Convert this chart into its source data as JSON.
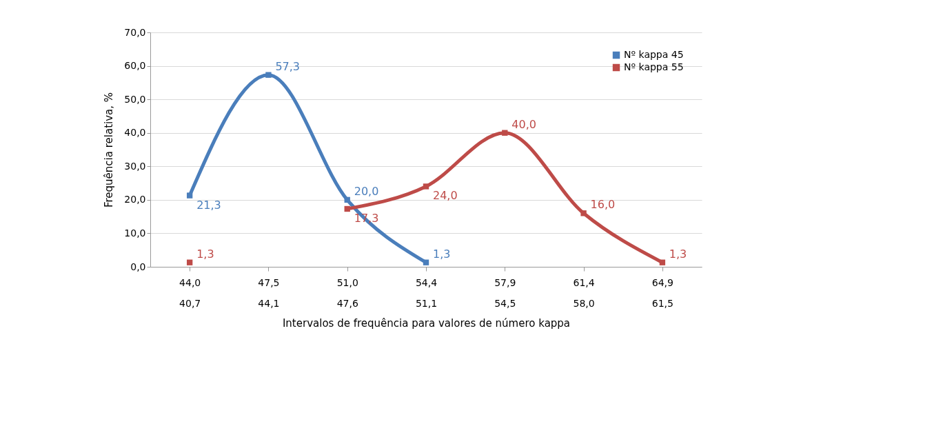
{
  "chart_data": {
    "type": "line",
    "xlabel": "Intervalos de frequência para valores de número kappa",
    "ylabel": "Frequência relativa, %",
    "categories": [
      "44,0\n40,7",
      "47,5\n44,1",
      "51,0\n47,6",
      "54,4\n51,1",
      "57,9\n54,5",
      "61,4\n58,0",
      "64,9\n61,5"
    ],
    "series": [
      {
        "name": "Nº kappa 45",
        "color": "#4a7ebb",
        "values": [
          21.3,
          57.3,
          20.0,
          1.3,
          null,
          null,
          null
        ],
        "value_labels": [
          "21,3",
          "57,3",
          "20,0",
          "1,3",
          null,
          null,
          null
        ]
      },
      {
        "name": "Nº kappa 55",
        "color": "#be4b48",
        "values": [
          1.3,
          null,
          17.3,
          24.0,
          40.0,
          16.0,
          1.3
        ],
        "value_labels": [
          "1,3",
          null,
          "17,3",
          "24,0",
          "40,0",
          "16,0",
          "1,3"
        ]
      }
    ],
    "ylim": [
      0,
      70
    ],
    "yticks": [
      {
        "value": 0,
        "label": "0,0"
      },
      {
        "value": 10,
        "label": "10,0"
      },
      {
        "value": 20,
        "label": "20,0"
      },
      {
        "value": 30,
        "label": "30,0"
      },
      {
        "value": 40,
        "label": "40,0"
      },
      {
        "value": 50,
        "label": "50,0"
      },
      {
        "value": 60,
        "label": "60,0"
      },
      {
        "value": 70,
        "label": "70,0"
      }
    ],
    "grid": "y",
    "legend": "top right",
    "marker": "square",
    "line_style": "solid"
  }
}
